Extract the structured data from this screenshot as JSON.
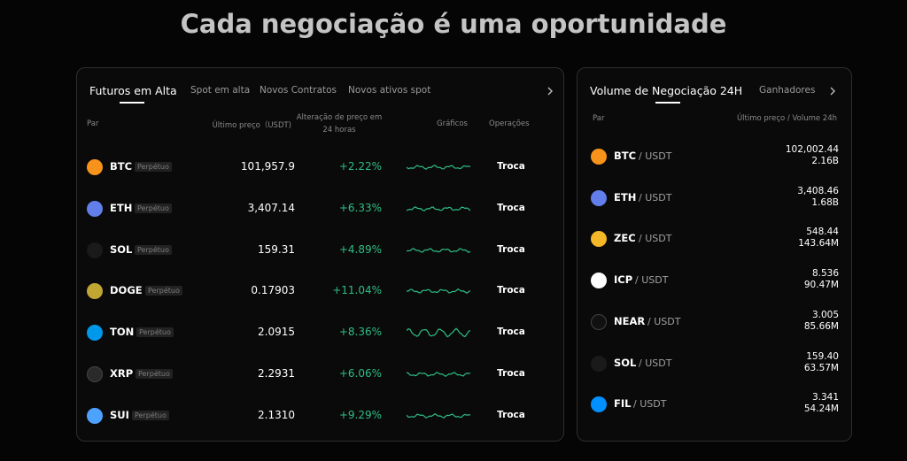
{
  "title": "Cada negociação é uma oportunidade",
  "left_panel": {
    "tabs": [
      "Futuros em Alta",
      "Spot em alta",
      "Novos Contratos",
      "Novos ativos spot"
    ],
    "columns": [
      "Par",
      "Último preço（USDT)",
      "Alteração de preço em",
      "24 horas",
      "Gráficos",
      "Operações"
    ],
    "rows": [
      {
        "symbol": "BTC",
        "tag": "Perpétuo",
        "price": "101,957.9",
        "change": "+2.22%",
        "action": "Troca"
      },
      {
        "symbol": "ETH",
        "tag": "Perpétuo",
        "price": "3,407.14",
        "change": "+6.33%",
        "action": "Troca"
      },
      {
        "symbol": "SOL",
        "tag": "Perpétuo",
        "price": "159.31",
        "change": "+4.89%",
        "action": "Troca"
      },
      {
        "symbol": "DOGE",
        "tag": "Perpétuo",
        "price": "0.17903",
        "change": "+11.04%",
        "action": "Troca"
      },
      {
        "symbol": "TON",
        "tag": "Perpétuo",
        "price": "2.0915",
        "change": "+8.36%",
        "action": "Troca"
      },
      {
        "symbol": "XRP",
        "tag": "Perpétuo",
        "price": "2.2931",
        "change": "+6.06%",
        "action": "Troca"
      },
      {
        "symbol": "SUI",
        "tag": "Perpétuo",
        "price": "2.1310",
        "change": "+9.29%",
        "action": "Troca"
      }
    ]
  },
  "right_panel": {
    "tabs": [
      "Volume de Negociação 24H",
      "Ganhadores"
    ],
    "columns": [
      "Par",
      "Último preço / Volume 24h"
    ],
    "rows": [
      {
        "base": "BTC",
        "quote": "/ USDT",
        "price": "102,002.44",
        "volume": "2.16B"
      },
      {
        "base": "ETH",
        "quote": "/ USDT",
        "price": "3,408.46",
        "volume": "1.68B"
      },
      {
        "base": "ZEC",
        "quote": "/ USDT",
        "price": "548.44",
        "volume": "143.64M"
      },
      {
        "base": "ICP",
        "quote": "/ USDT",
        "price": "8.536",
        "volume": "90.47M"
      },
      {
        "base": "NEAR",
        "quote": "/ USDT",
        "price": "3.005",
        "volume": "85.66M"
      },
      {
        "base": "SOL",
        "quote": "/ USDT",
        "price": "159.40",
        "volume": "63.57M"
      },
      {
        "base": "FIL",
        "quote": "/ USDT",
        "price": "3.341",
        "volume": "54.24M"
      }
    ]
  }
}
